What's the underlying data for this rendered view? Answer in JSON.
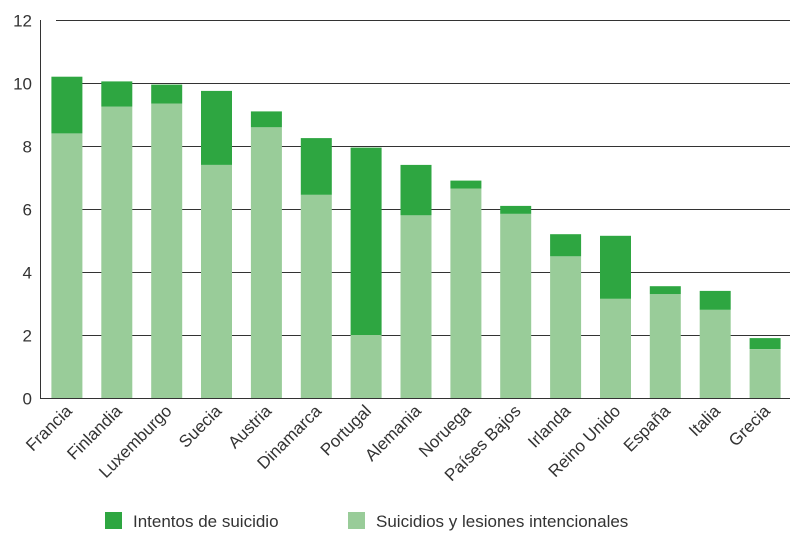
{
  "chart_data": {
    "type": "bar",
    "stacked": true,
    "title": "",
    "xlabel": "",
    "ylabel": "",
    "ylim": [
      0,
      12
    ],
    "yticks": [
      0,
      2,
      4,
      6,
      8,
      10,
      12
    ],
    "grid": "horizontal",
    "legend_position": "bottom",
    "categories": [
      "Francia",
      "Finlandia",
      "Luxemburgo",
      "Suecia",
      "Austria",
      "Dinamarca",
      "Portugal",
      "Alemania",
      "Noruega",
      "Países Bajos",
      "Irlanda",
      "Reino Unido",
      "España",
      "Italia",
      "Grecia"
    ],
    "series": [
      {
        "name": "Suicidios y lesiones intencionales",
        "color": "#99cc99",
        "values": [
          8.4,
          9.25,
          9.35,
          7.4,
          8.6,
          6.45,
          2.0,
          5.8,
          6.65,
          5.85,
          4.5,
          3.15,
          3.3,
          2.8,
          1.55
        ]
      },
      {
        "name": "Intentos de suicidio",
        "color": "#2ea641",
        "values": [
          1.8,
          0.8,
          0.6,
          2.35,
          0.5,
          1.8,
          5.95,
          1.6,
          0.25,
          0.25,
          0.7,
          2.0,
          0.25,
          0.6,
          0.35
        ]
      }
    ],
    "legend": [
      {
        "label": "Intentos de suicidio",
        "color": "#2ea641"
      },
      {
        "label": "Suicidios y lesiones intencionales",
        "color": "#99cc99"
      }
    ]
  }
}
